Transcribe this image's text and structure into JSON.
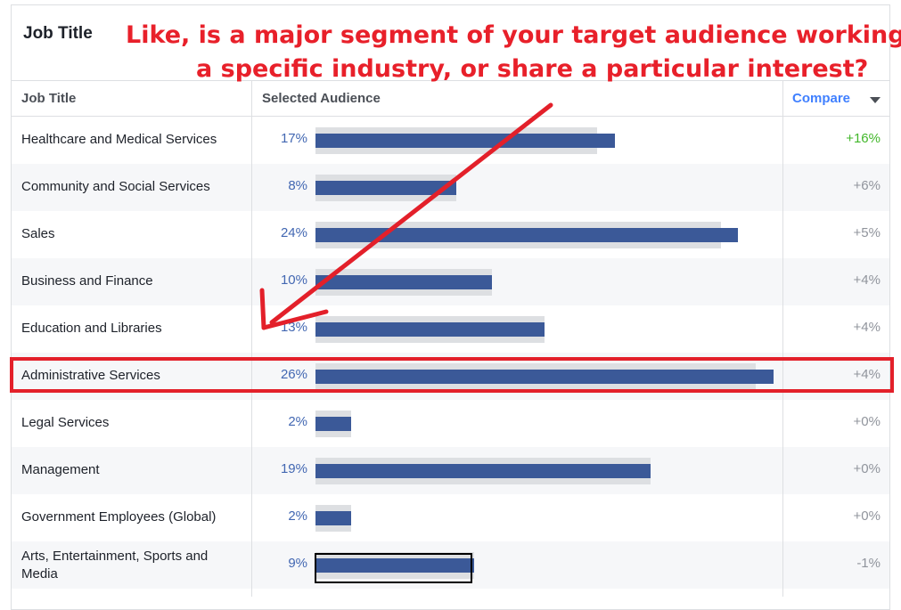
{
  "card": {
    "title": "Job Title"
  },
  "annotation": {
    "line1": "Like, is a major segment of your target audience working in",
    "line2": "a specific industry, or share a particular interest?",
    "color": "#e8202a"
  },
  "table": {
    "headers": {
      "job": "Job Title",
      "audience": "Selected Audience",
      "compare": "Compare"
    },
    "rows": [
      {
        "job": "Healthcare and Medical Services",
        "pct": "17%",
        "diff": "+16%",
        "selected_share": 0.17,
        "benchmark_share": 0.16
      },
      {
        "job": "Community and Social Services",
        "pct": "8%",
        "diff": "+6%",
        "selected_share": 0.08,
        "benchmark_share": 0.08
      },
      {
        "job": "Sales",
        "pct": "24%",
        "diff": "+5%",
        "selected_share": 0.24,
        "benchmark_share": 0.23
      },
      {
        "job": "Business and Finance",
        "pct": "10%",
        "diff": "+4%",
        "selected_share": 0.1,
        "benchmark_share": 0.1
      },
      {
        "job": "Education and Libraries",
        "pct": "13%",
        "diff": "+4%",
        "selected_share": 0.13,
        "benchmark_share": 0.13
      },
      {
        "job": "Administrative Services",
        "pct": "26%",
        "diff": "+4%",
        "selected_share": 0.26,
        "benchmark_share": 0.25
      },
      {
        "job": "Legal Services",
        "pct": "2%",
        "diff": "+0%",
        "selected_share": 0.02,
        "benchmark_share": 0.02
      },
      {
        "job": "Management",
        "pct": "19%",
        "diff": "+0%",
        "selected_share": 0.19,
        "benchmark_share": 0.19
      },
      {
        "job": "Government Employees (Global)",
        "pct": "2%",
        "diff": "+0%",
        "selected_share": 0.02,
        "benchmark_share": 0.02
      },
      {
        "job": "Arts, Entertainment, Sports and Media",
        "pct": "9%",
        "diff": "-1%",
        "selected_share": 0.09,
        "benchmark_share": 0.09
      }
    ],
    "highlighted_row": "Administrative Services",
    "colors": {
      "bar": "#3b5998",
      "bar_bg": "#dddfe2",
      "positive": "#42b72a",
      "link": "#4080ff"
    }
  }
}
